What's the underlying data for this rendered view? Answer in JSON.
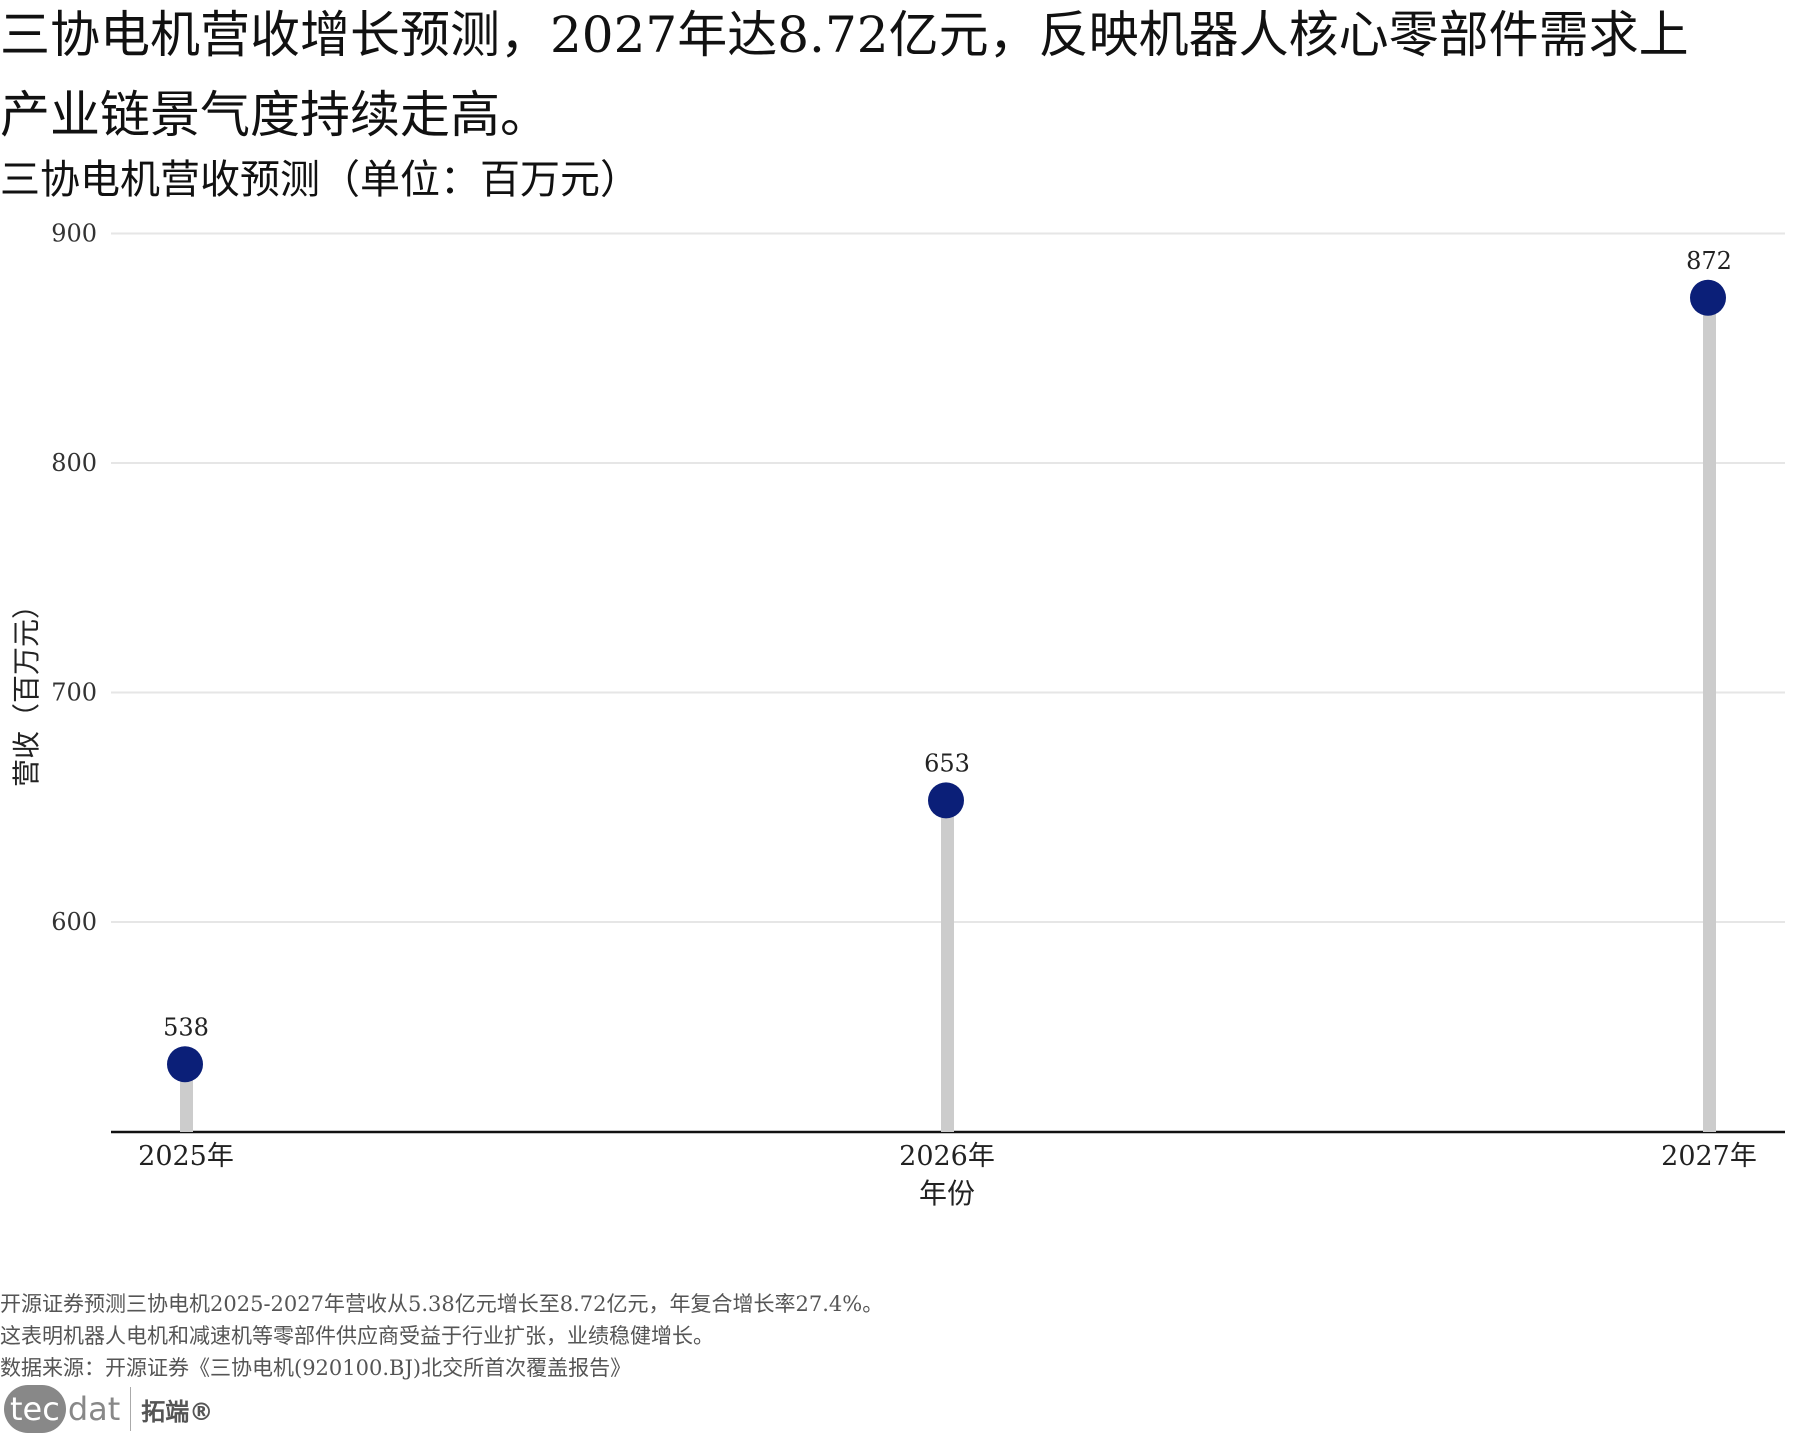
{
  "title_line1": "三协电机营收增长预测，2027年达8.72亿元，反映机器人核心零部件需求上",
  "title_line2": "产业链景气度持续走高。",
  "subtitle": "三协电机营收预测（单位：百万元）",
  "footer": [
    "开源证券预测三协电机2025-2027年营收从5.38亿元增长至8.72亿元，年复合增长率27.4%。",
    "这表明机器人电机和减速机等零部件供应商受益于行业扩张，业绩稳健增长。",
    "数据来源：开源证券《三协电机(920100.BJ)北交所首次覆盖报告》"
  ],
  "logo": {
    "left": "tec",
    "right": "dat",
    "brand": "拓端®"
  },
  "colors": {
    "point": "#0b1f78",
    "stem": "#cccccc",
    "grid": "#e6e6e6",
    "axis": "#111111"
  },
  "chart_data": {
    "type": "lollipop",
    "categories": [
      "2025年",
      "2026年",
      "2027年"
    ],
    "values": [
      538,
      653,
      872
    ],
    "data_labels": [
      "538",
      "653",
      "872"
    ],
    "xlabel": "年份",
    "ylabel": "营收（百万元）",
    "ylim": [
      508,
      900
    ],
    "yticks": [
      600,
      700,
      800,
      900
    ],
    "grid": true
  }
}
